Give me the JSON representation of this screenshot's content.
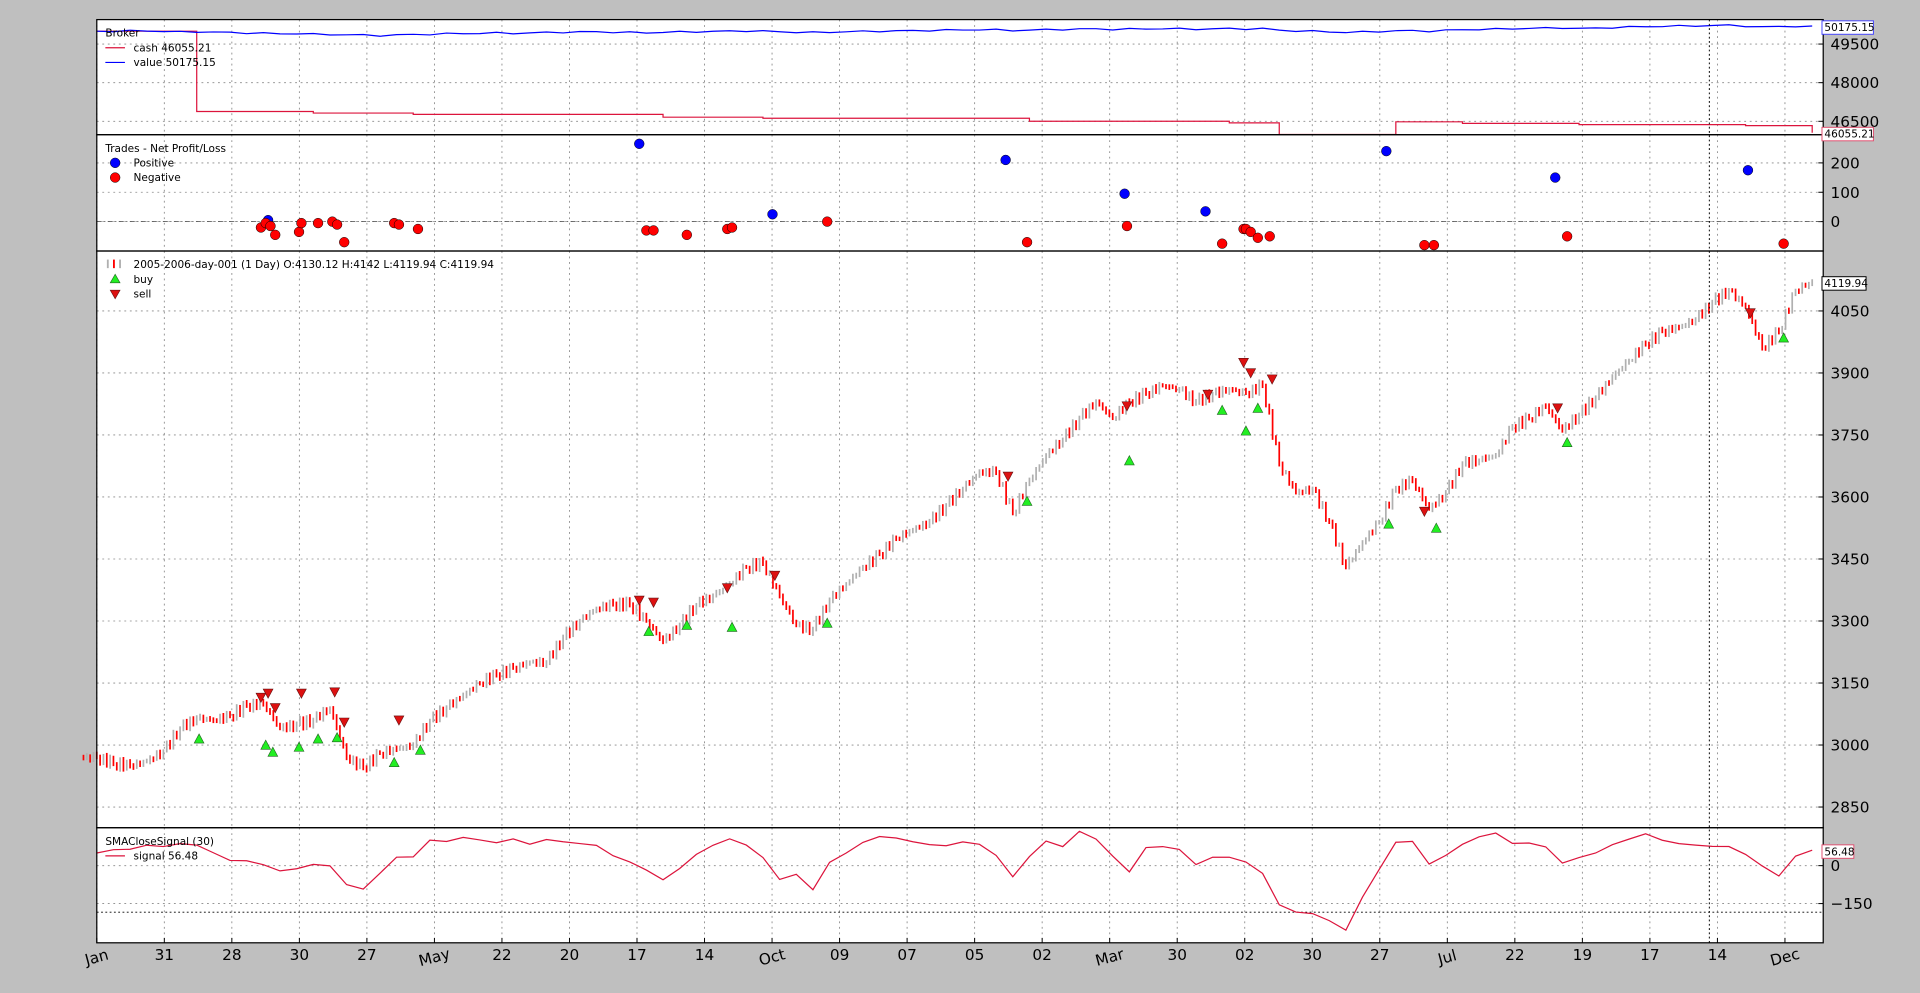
{
  "colors": {
    "background": "#bfbfbf",
    "cash": "#dc143c",
    "value": "#0000ff",
    "positive": "#0000ff",
    "negative": "#ff0000",
    "bar_up": "#b0b0b0",
    "bar_down": "#ff0000",
    "buy": "#22ee22",
    "sell": "#dd1111",
    "signal": "#dc143c"
  },
  "x_axis": {
    "tick_labels": [
      "Jan",
      "31",
      "28",
      "30",
      "27",
      "May",
      "22",
      "20",
      "17",
      "14",
      "Oct",
      "09",
      "07",
      "05",
      "02",
      "Mar",
      "30",
      "02",
      "30",
      "27",
      "Jul",
      "22",
      "19",
      "17",
      "14",
      "Dec"
    ],
    "rotated": [
      "Jan",
      "May",
      "Oct",
      "Mar",
      "Jul",
      "Dec"
    ]
  },
  "chart_data": [
    {
      "type": "line",
      "title": "Broker",
      "legend": [
        {
          "label": "cash 46055.21",
          "color": "#dc143c"
        },
        {
          "label": "value 50175.15",
          "color": "#0000ff"
        }
      ],
      "legend_position": "top-left",
      "grid": true,
      "ylim": [
        45980,
        50450
      ],
      "y_ticks": [
        "46500",
        "48000",
        "49500"
      ],
      "last_value_labels": {
        "value": "50175.15",
        "cash": "46055.21"
      },
      "series": [
        {
          "name": "cash",
          "values": [
            50000,
            50000,
            50000,
            50000,
            50000,
            50000,
            46880,
            46880,
            46880,
            46880,
            46880,
            46880,
            46880,
            46820,
            46820,
            46820,
            46820,
            46820,
            46820,
            46770,
            46770,
            46770,
            46770,
            46770,
            46770,
            46770,
            46770,
            46770,
            46770,
            46770,
            46770,
            46770,
            46770,
            46770,
            46660,
            46660,
            46660,
            46660,
            46660,
            46660,
            46620,
            46620,
            46620,
            46620,
            46620,
            46620,
            46620,
            46620,
            46620,
            46620,
            46620,
            46620,
            46620,
            46620,
            46620,
            46620,
            46500,
            46500,
            46500,
            46500,
            46500,
            46500,
            46500,
            46500,
            46500,
            46500,
            46500,
            46500,
            46440,
            46440,
            46440,
            45990,
            45990,
            45990,
            45990,
            45990,
            45990,
            45990,
            46480,
            46480,
            46480,
            46480,
            46420,
            46420,
            46420,
            46420,
            46420,
            46420,
            46420,
            46370,
            46370,
            46370,
            46370,
            46370,
            46370,
            46370,
            46370,
            46370,
            46370,
            46330,
            46330,
            46330,
            46330,
            46055.21
          ]
        },
        {
          "name": "value",
          "values": [
            50000,
            50000,
            50010,
            50020,
            49990,
            49970,
            49980,
            49960,
            49950,
            49930,
            49920,
            49900,
            49910,
            49880,
            49870,
            49860,
            49850,
            49830,
            49850,
            49870,
            49880,
            49900,
            49910,
            49920,
            49930,
            49920,
            49930,
            49950,
            49960,
            49970,
            49980,
            49960,
            49950,
            49940,
            49960,
            49970,
            49980,
            49990,
            50000,
            50010,
            50000,
            49980,
            49960,
            49950,
            49960,
            49980,
            49990,
            50000,
            50010,
            50020,
            50030,
            50040,
            50050,
            50060,
            50050,
            50030,
            50040,
            50060,
            50070,
            50080,
            50090,
            50070,
            50080,
            50090,
            50100,
            50090,
            50080,
            50090,
            50100,
            50090,
            50100,
            50040,
            50010,
            50000,
            49980,
            49950,
            49970,
            49990,
            50010,
            50020,
            50000,
            50030,
            50060,
            50070,
            50080,
            50100,
            50110,
            50120,
            50130,
            50100,
            50120,
            50140,
            50160,
            50180,
            50190,
            50200,
            50210,
            50220,
            50230,
            50200,
            50160,
            50180,
            50190,
            50175.15
          ]
        }
      ]
    },
    {
      "type": "scatter",
      "title": "Trades - Net Profit/Loss",
      "legend": [
        {
          "label": "Positive",
          "color": "#0000ff"
        },
        {
          "label": "Negative",
          "color": "#ff0000"
        }
      ],
      "legend_position": "top-left",
      "grid": true,
      "ylim": [
        -100,
        296
      ],
      "y_ticks": [
        "0",
        "100",
        "200"
      ],
      "positive": [
        [
          "2005-03-16",
          5
        ],
        [
          "2005-08-19",
          265
        ],
        [
          "2005-10-14",
          25
        ],
        [
          "2006-01-20",
          210
        ],
        [
          "2006-03-11",
          95
        ],
        [
          "2006-04-14",
          35
        ],
        [
          "2006-06-29",
          240
        ],
        [
          "2006-09-08",
          150
        ],
        [
          "2006-11-28",
          175
        ]
      ],
      "negative": [
        [
          "2005-03-13",
          -20
        ],
        [
          "2005-03-15",
          -5
        ],
        [
          "2005-03-17",
          -15
        ],
        [
          "2005-03-19",
          -45
        ],
        [
          "2005-03-29",
          -35
        ],
        [
          "2005-03-30",
          -5
        ],
        [
          "2005-04-06",
          -5
        ],
        [
          "2005-04-12",
          0
        ],
        [
          "2005-04-14",
          -10
        ],
        [
          "2005-04-17",
          -70
        ],
        [
          "2005-05-08",
          -5
        ],
        [
          "2005-05-10",
          -10
        ],
        [
          "2005-05-18",
          -25
        ],
        [
          "2005-08-22",
          -30
        ],
        [
          "2005-08-25",
          -30
        ],
        [
          "2005-09-08",
          -45
        ],
        [
          "2005-09-25",
          -25
        ],
        [
          "2005-09-27",
          -20
        ],
        [
          "2005-11-06",
          0
        ],
        [
          "2006-01-29",
          -70
        ],
        [
          "2006-03-12",
          -15
        ],
        [
          "2006-04-21",
          -75
        ],
        [
          "2006-04-30",
          -25
        ],
        [
          "2006-05-01",
          -25
        ],
        [
          "2006-05-03",
          -35
        ],
        [
          "2006-05-06",
          -55
        ],
        [
          "2006-05-11",
          -50
        ],
        [
          "2006-07-15",
          -80
        ],
        [
          "2006-07-19",
          -80
        ],
        [
          "2006-09-13",
          -50
        ],
        [
          "2006-12-13",
          -75
        ]
      ]
    },
    {
      "type": "ohlc",
      "title": "2005-2006-day-001 (1 Day) O:4130.12 H:4142 L:4119.94 C:4119.94",
      "legend": [
        {
          "label": "buy",
          "color": "#22ee22"
        },
        {
          "label": "sell",
          "color": "#dd1111"
        }
      ],
      "legend_position": "top-left",
      "grid": true,
      "ylim": [
        2800,
        4195
      ],
      "y_ticks": [
        "2850",
        "3000",
        "3150",
        "3300",
        "3450",
        "3600",
        "3750",
        "3900",
        "4050"
      ],
      "last_value_label": "4119.94",
      "x": [
        "2005-01-03",
        "2005-01-10",
        "2005-01-17",
        "2005-01-24",
        "2005-01-31",
        "2005-02-07",
        "2005-02-14",
        "2005-02-21",
        "2005-02-28",
        "2005-03-07",
        "2005-03-14",
        "2005-03-21",
        "2005-03-28",
        "2005-04-04",
        "2005-04-11",
        "2005-04-18",
        "2005-04-25",
        "2005-05-02",
        "2005-05-09",
        "2005-05-16",
        "2005-05-23",
        "2005-05-30",
        "2005-06-06",
        "2005-06-13",
        "2005-06-20",
        "2005-06-27",
        "2005-07-04",
        "2005-07-11",
        "2005-07-18",
        "2005-07-25",
        "2005-08-01",
        "2005-08-08",
        "2005-08-15",
        "2005-08-22",
        "2005-08-29",
        "2005-09-05",
        "2005-09-12",
        "2005-09-19",
        "2005-09-26",
        "2005-10-03",
        "2005-10-10",
        "2005-10-17",
        "2005-10-24",
        "2005-10-31",
        "2005-11-07",
        "2005-11-14",
        "2005-11-21",
        "2005-11-28",
        "2005-12-05",
        "2005-12-12",
        "2005-12-19",
        "2005-12-26",
        "2006-01-02",
        "2006-01-09",
        "2006-01-16",
        "2006-01-23",
        "2006-01-30",
        "2006-02-06",
        "2006-02-13",
        "2006-02-20",
        "2006-02-27",
        "2006-03-06",
        "2006-03-13",
        "2006-03-20",
        "2006-03-27",
        "2006-04-03",
        "2006-04-10",
        "2006-04-17",
        "2006-04-24",
        "2006-05-01",
        "2006-05-08",
        "2006-05-15",
        "2006-05-22",
        "2006-05-29",
        "2006-06-05",
        "2006-06-12",
        "2006-06-19",
        "2006-06-26",
        "2006-07-03",
        "2006-07-10",
        "2006-07-17",
        "2006-07-24",
        "2006-07-31",
        "2006-08-07",
        "2006-08-14",
        "2006-08-21",
        "2006-08-28",
        "2006-09-04",
        "2006-09-11",
        "2006-09-18",
        "2006-09-25",
        "2006-10-02",
        "2006-10-09",
        "2006-10-16",
        "2006-10-23",
        "2006-10-30",
        "2006-11-06",
        "2006-11-13",
        "2006-11-20",
        "2006-11-27",
        "2006-12-04",
        "2006-12-11",
        "2006-12-18",
        "2006-12-25"
      ],
      "close": [
        2970,
        2955,
        2950,
        2960,
        2985,
        3040,
        3065,
        3060,
        3070,
        3095,
        3100,
        3040,
        3050,
        3060,
        3090,
        2970,
        2945,
        2980,
        2990,
        3000,
        3060,
        3090,
        3120,
        3150,
        3170,
        3185,
        3200,
        3200,
        3260,
        3300,
        3330,
        3340,
        3340,
        3300,
        3250,
        3290,
        3340,
        3360,
        3390,
        3430,
        3440,
        3360,
        3290,
        3280,
        3350,
        3390,
        3430,
        3460,
        3500,
        3520,
        3540,
        3580,
        3620,
        3660,
        3660,
        3560,
        3640,
        3700,
        3740,
        3790,
        3830,
        3790,
        3830,
        3850,
        3870,
        3860,
        3830,
        3850,
        3860,
        3850,
        3870,
        3680,
        3610,
        3620,
        3540,
        3430,
        3490,
        3540,
        3620,
        3640,
        3570,
        3610,
        3680,
        3690,
        3700,
        3770,
        3790,
        3820,
        3760,
        3800,
        3840,
        3890,
        3930,
        3970,
        4000,
        4010,
        4030,
        4070,
        4100,
        4060,
        3960,
        4000,
        4100,
        4119.94
      ],
      "buy": [
        [
          "2005-02-15",
          3015
        ],
        [
          "2005-03-15",
          3000
        ],
        [
          "2005-03-18",
          2983
        ],
        [
          "2005-03-29",
          2995
        ],
        [
          "2005-04-06",
          3015
        ],
        [
          "2005-04-14",
          3018
        ],
        [
          "2005-05-08",
          2958
        ],
        [
          "2005-05-19",
          2988
        ],
        [
          "2005-08-23",
          3275
        ],
        [
          "2005-09-08",
          3290
        ],
        [
          "2005-09-27",
          3285
        ],
        [
          "2005-11-06",
          3295
        ],
        [
          "2006-01-29",
          3590
        ],
        [
          "2006-03-13",
          3688
        ],
        [
          "2006-04-21",
          3810
        ],
        [
          "2006-05-01",
          3760
        ],
        [
          "2006-05-06",
          3815
        ],
        [
          "2006-06-30",
          3535
        ],
        [
          "2006-07-20",
          3525
        ],
        [
          "2006-09-13",
          3732
        ],
        [
          "2006-12-13",
          3985
        ]
      ],
      "sell": [
        [
          "2005-03-13",
          3115
        ],
        [
          "2005-03-16",
          3125
        ],
        [
          "2005-03-19",
          3090
        ],
        [
          "2005-03-30",
          3125
        ],
        [
          "2005-04-13",
          3128
        ],
        [
          "2005-04-17",
          3055
        ],
        [
          "2005-05-10",
          3060
        ],
        [
          "2005-08-19",
          3350
        ],
        [
          "2005-08-25",
          3345
        ],
        [
          "2005-09-25",
          3380
        ],
        [
          "2005-10-15",
          3410
        ],
        [
          "2006-01-21",
          3650
        ],
        [
          "2006-03-12",
          3820
        ],
        [
          "2006-04-15",
          3848
        ],
        [
          "2006-04-30",
          3925
        ],
        [
          "2006-05-03",
          3900
        ],
        [
          "2006-05-12",
          3885
        ],
        [
          "2006-07-15",
          3565
        ],
        [
          "2006-09-09",
          3815
        ],
        [
          "2006-11-29",
          4045
        ]
      ]
    },
    {
      "type": "line",
      "title": "SMACloseSignal (30)",
      "legend": [
        {
          "label": "signal 56.48",
          "color": "#dc143c"
        }
      ],
      "legend_position": "top-left",
      "grid": true,
      "ylim": [
        -305,
        150
      ],
      "y_ticks": [
        "0",
        "−150"
      ],
      "last_value_label": "56.48",
      "values": [
        50,
        60,
        70,
        75,
        80,
        85,
        80,
        55,
        15,
        25,
        0,
        -20,
        -10,
        0,
        5,
        -80,
        -90,
        -30,
        30,
        40,
        95,
        100,
        110,
        100,
        95,
        100,
        90,
        100,
        95,
        90,
        75,
        45,
        10,
        -15,
        -55,
        -15,
        50,
        75,
        110,
        80,
        30,
        -50,
        -40,
        -90,
        10,
        50,
        95,
        110,
        115,
        90,
        85,
        80,
        90,
        90,
        35,
        -40,
        35,
        95,
        80,
        130,
        110,
        35,
        -25,
        75,
        70,
        70,
        0,
        35,
        35,
        10,
        -25,
        -160,
        -180,
        -190,
        -220,
        -250,
        -130,
        -10,
        90,
        95,
        10,
        35,
        90,
        110,
        130,
        90,
        85,
        80,
        5,
        35,
        50,
        80,
        110,
        120,
        105,
        85,
        80,
        80,
        70,
        50,
        -5,
        -40,
        40,
        56.48
      ]
    }
  ]
}
